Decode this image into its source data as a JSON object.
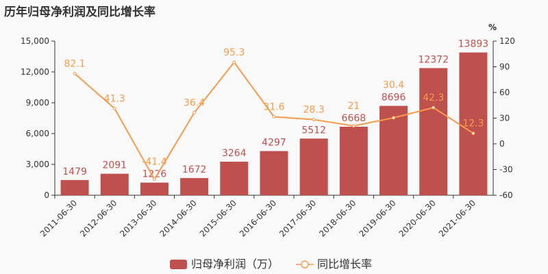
{
  "chart_data": {
    "type": "bar",
    "title": "历年归母净利润及同比增长率",
    "categories": [
      "2011-06-30",
      "2012-06-30",
      "2013-06-30",
      "2014-06-30",
      "2015-06-30",
      "2016-06-30",
      "2017-06-30",
      "2018-06-30",
      "2019-06-30",
      "2020-06-30",
      "2021-06-30"
    ],
    "series": [
      {
        "name": "归母净利润（万）",
        "type": "bar",
        "axis": "left",
        "color": "#c0504d",
        "values": [
          1479,
          2091,
          1226,
          1672,
          3264,
          4297,
          5512,
          6668,
          8696,
          12372,
          13893
        ]
      },
      {
        "name": "同比增长率",
        "type": "line",
        "axis": "right",
        "color": "#f79b4b",
        "values": [
          82.1,
          41.3,
          -41.4,
          36.4,
          95.3,
          31.6,
          28.3,
          21,
          30.4,
          42.3,
          12.3
        ]
      }
    ],
    "left_axis": {
      "ylim": [
        0,
        15000
      ],
      "ticks": [
        "0",
        "3,000",
        "6,000",
        "9,000",
        "12,000",
        "15,000"
      ]
    },
    "right_axis": {
      "label": "%",
      "ylim": [
        -60,
        120
      ],
      "ticks": [
        "-60",
        "-30",
        "0",
        "30",
        "60",
        "90",
        "120"
      ]
    },
    "grid": false,
    "legend": "bottom-center"
  }
}
